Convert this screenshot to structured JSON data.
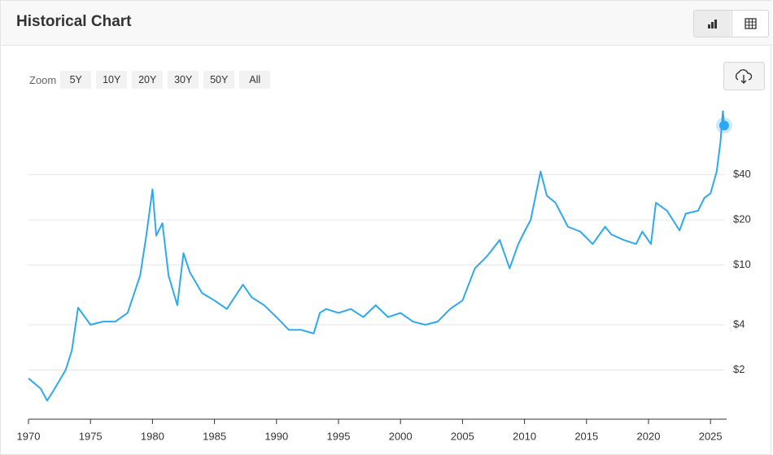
{
  "header": {
    "title": "Historical Chart"
  },
  "zoom": {
    "label": "Zoom",
    "buttons": [
      "5Y",
      "10Y",
      "20Y",
      "30Y",
      "50Y",
      "All"
    ]
  },
  "chart_data": {
    "type": "line",
    "log_y": true,
    "grid": true,
    "xlim": [
      1970,
      2026.3
    ],
    "xticks": [
      1970,
      1975,
      1980,
      1985,
      1990,
      1995,
      2000,
      2005,
      2010,
      2015,
      2020,
      2025
    ],
    "ylim": [
      0.94,
      115
    ],
    "yticks": [
      {
        "value": 2,
        "label": "$2"
      },
      {
        "value": 4,
        "label": "$4"
      },
      {
        "value": 10,
        "label": "$10"
      },
      {
        "value": 20,
        "label": "$20"
      },
      {
        "value": 40,
        "label": "$40"
      }
    ],
    "series": [
      {
        "color": "#2ea8f0",
        "x": [
          1970,
          1971,
          1971.5,
          1972,
          1973,
          1973.5,
          1974,
          1975,
          1976,
          1977,
          1978,
          1979,
          1979.5,
          1980,
          1980.3,
          1980.8,
          1981.3,
          1982,
          1982.5,
          1983,
          1984,
          1985,
          1986,
          1987.3,
          1988,
          1989,
          1990,
          1991,
          1992,
          1993,
          1993.5,
          1994,
          1995,
          1996,
          1997,
          1998,
          1999,
          2000,
          2001,
          2002,
          2003,
          2004,
          2005,
          2006,
          2007,
          2008,
          2008.8,
          2009.5,
          2010,
          2010.5,
          2011.3,
          2011.8,
          2012.5,
          2013.5,
          2014.5,
          2015.5,
          2016.5,
          2017,
          2018,
          2019,
          2019.5,
          2020.2,
          2020.6,
          2021.5,
          2022.5,
          2023,
          2024,
          2024.5,
          2025,
          2025.5,
          2025.8,
          2026.0,
          2026.1
        ],
        "values": [
          1.76,
          1.5,
          1.25,
          1.45,
          2.0,
          2.7,
          5.2,
          4.0,
          4.2,
          4.2,
          4.8,
          8.5,
          15.7,
          32,
          15.7,
          19,
          8.5,
          5.4,
          12,
          9,
          6.5,
          5.8,
          5.1,
          7.4,
          6.1,
          5.4,
          4.5,
          3.7,
          3.7,
          3.5,
          4.8,
          5.1,
          4.8,
          5.1,
          4.5,
          5.4,
          4.5,
          4.8,
          4.2,
          4.0,
          4.2,
          5.1,
          5.8,
          9.5,
          11.5,
          14.7,
          9.5,
          13.8,
          16.7,
          20,
          42,
          29,
          26,
          18,
          16.7,
          13.8,
          18,
          16,
          14.7,
          13.8,
          16.7,
          13.8,
          26,
          23,
          17,
          22,
          23,
          28,
          30,
          42,
          66,
          106,
          85
        ]
      }
    ]
  }
}
